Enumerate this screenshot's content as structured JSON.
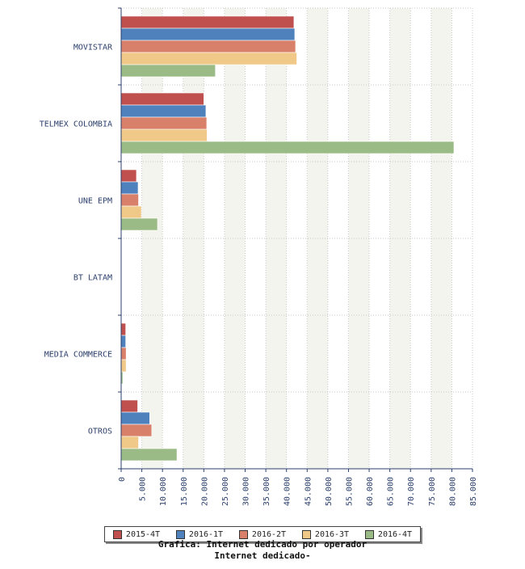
{
  "chart_data": {
    "type": "bar",
    "orientation": "horizontal",
    "title": "Grafica: Internet dedicado por operador",
    "subtitle": "Internet dedicado-",
    "categories": [
      "MOVISTAR",
      "TELMEX COLOMBIA",
      "UNE EPM",
      "BT LATAM",
      "MEDIA COMMERCE",
      "OTROS"
    ],
    "series": [
      {
        "name": "2015-4T",
        "color": "#c0504d",
        "values": [
          41800,
          20000,
          3700,
          0,
          1100,
          4000
        ]
      },
      {
        "name": "2016-1T",
        "color": "#4f81bd",
        "values": [
          42000,
          20500,
          4100,
          0,
          1100,
          6900
        ]
      },
      {
        "name": "2016-2T",
        "color": "#d9806a",
        "values": [
          42200,
          20700,
          4200,
          0,
          1200,
          7400
        ]
      },
      {
        "name": "2016-3T",
        "color": "#f0c989",
        "values": [
          42500,
          20800,
          4900,
          0,
          1200,
          4200
        ]
      },
      {
        "name": "2016-4T",
        "color": "#9bbb86",
        "values": [
          22800,
          80500,
          8800,
          0,
          400,
          13500
        ]
      }
    ],
    "xlim": [
      0,
      85000
    ],
    "xticks": [
      "0",
      "5.000",
      "10.000",
      "15.000",
      "20.000",
      "25.000",
      "30.000",
      "35.000",
      "40.000",
      "45.000",
      "50.000",
      "55.000",
      "60.000",
      "65.000",
      "70.000",
      "75.000",
      "80.000",
      "85.000"
    ],
    "legend_position": "bottom",
    "grid": true
  }
}
